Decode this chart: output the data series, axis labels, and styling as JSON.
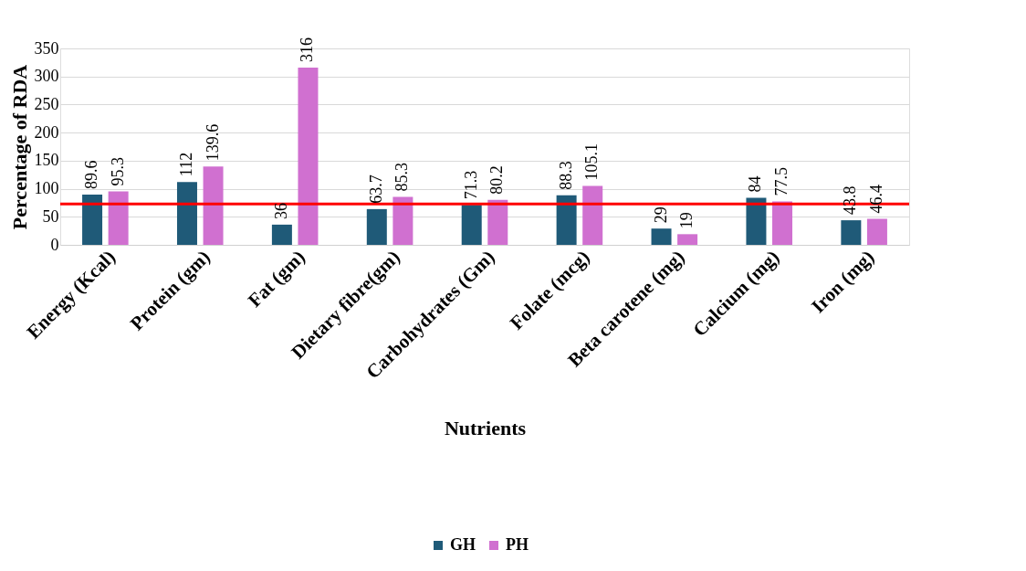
{
  "chart_data": {
    "type": "bar",
    "xlabel": "Nutrients",
    "ylabel": "Percentage of RDA",
    "categories": [
      "Energy (Kcal)",
      "Protein (gm)",
      "Fat (gm)",
      "Dietary fibre(gm)",
      "Carbohydrates (Gm)",
      "Folate (mcg)",
      "Beta carotene (mg)",
      "Calcium (mg)",
      "Iron (mg)"
    ],
    "series": [
      {
        "name": "GH",
        "color": "#1f5a78",
        "values": [
          89.6,
          112,
          36,
          63.7,
          71.3,
          88.3,
          29,
          84,
          43.8
        ]
      },
      {
        "name": "PH",
        "color": "#d070d0",
        "values": [
          95.3,
          139.6,
          316,
          85.3,
          80.2,
          105.1,
          19,
          77.5,
          46.4
        ]
      }
    ],
    "ylim": [
      0,
      350
    ],
    "yticks": [
      0,
      50,
      100,
      150,
      200,
      250,
      300,
      350
    ],
    "grid": "y",
    "data_labels": true,
    "legend": "bottom",
    "ref_lines": [
      {
        "axis": "y",
        "value": 73,
        "color": "#ff0000"
      }
    ]
  }
}
